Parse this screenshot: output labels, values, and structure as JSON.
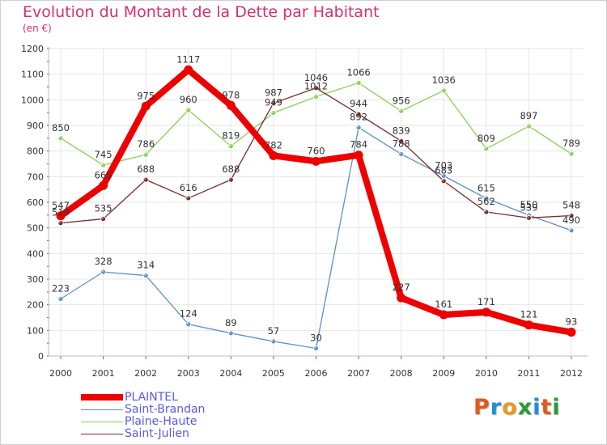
{
  "title": "Evolution du Montant de la Dette par Habitant",
  "subtitle": "(en €)",
  "logo": {
    "text": "Proxiti",
    "colors": [
      "#e05a1c",
      "#1f8fd6",
      "#e89a1c",
      "#2a9a3a",
      "#1f8fd6",
      "#e05a1c",
      "#2a9a3a"
    ]
  },
  "chart_data": {
    "type": "line",
    "x": [
      "2000",
      "2001",
      "2002",
      "2003",
      "2004",
      "2005",
      "2006",
      "2007",
      "2008",
      "2009",
      "2010",
      "2011",
      "2012"
    ],
    "ylim": [
      0,
      1200
    ],
    "yticks": [
      0,
      100,
      200,
      300,
      400,
      500,
      600,
      700,
      800,
      900,
      1000,
      1100,
      1200
    ],
    "grid": true,
    "legend_position": "bottom-left",
    "series": [
      {
        "name": "PLAINTEL",
        "color": "#ee0000",
        "width": 8,
        "values": [
          547,
          665,
          975,
          1117,
          978,
          782,
          760,
          784,
          227,
          161,
          171,
          121,
          93
        ],
        "labels": [
          "547",
          "665",
          "975",
          "1117",
          "978",
          "782",
          "760",
          "784",
          "227",
          "161",
          "171",
          "121",
          "93"
        ]
      },
      {
        "name": "Saint-Brandan",
        "color": "#5b92c8",
        "width": 1.3,
        "values": [
          223,
          328,
          314,
          124,
          89,
          57,
          30,
          892,
          788,
          703,
          615,
          550,
          490
        ],
        "labels": [
          "223",
          "328",
          "314",
          "124",
          "89",
          "57",
          "30",
          "892",
          "788",
          "703",
          "615",
          "550",
          "490"
        ]
      },
      {
        "name": "Plaine-Haute",
        "color": "#88d152",
        "width": 1.3,
        "values": [
          850,
          745,
          786,
          960,
          819,
          949,
          1012,
          1066,
          956,
          1036,
          809,
          897,
          789
        ],
        "labels": [
          "850",
          "745",
          "786",
          "960",
          "819",
          "949",
          "1012",
          "1066",
          "956",
          "1036",
          "809",
          "897",
          "789"
        ]
      },
      {
        "name": "Saint-Julien",
        "color": "#7a2a2a",
        "width": 1.3,
        "values": [
          519,
          535,
          688,
          616,
          688,
          987,
          1046,
          944,
          839,
          683,
          562,
          539,
          548
        ],
        "labels": [
          "519",
          "535",
          "688",
          "616",
          "688",
          "987",
          "1046",
          "944",
          "839",
          "683",
          "562",
          "539",
          "548"
        ]
      }
    ]
  }
}
